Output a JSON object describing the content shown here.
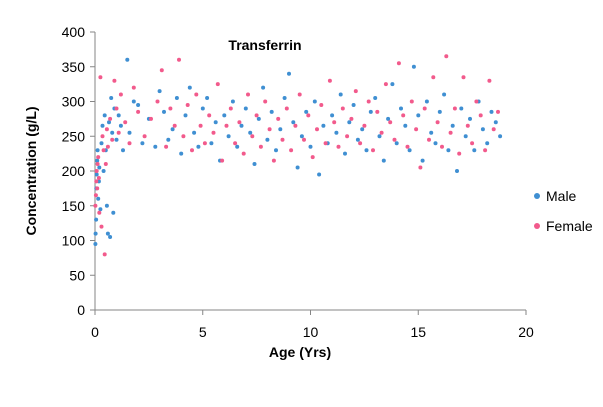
{
  "chart_data": {
    "type": "scatter",
    "title": "Transferrin",
    "xlabel": "Age (Yrs)",
    "ylabel": "Concentration (g/L)",
    "xlim": [
      0,
      20
    ],
    "ylim": [
      0,
      400
    ],
    "xticks": [
      "0",
      "5",
      "10",
      "15",
      "20"
    ],
    "yticks": [
      "0",
      "50",
      "100",
      "150",
      "200",
      "250",
      "300",
      "350",
      "400"
    ],
    "grid": false,
    "legend_position": "right",
    "series": [
      {
        "name": "Male",
        "color": "#3f8fd2",
        "points": [
          [
            0.02,
            95
          ],
          [
            0.03,
            110
          ],
          [
            0.05,
            130
          ],
          [
            0.06,
            175
          ],
          [
            0.08,
            195
          ],
          [
            0.1,
            215
          ],
          [
            0.12,
            230
          ],
          [
            0.15,
            160
          ],
          [
            0.18,
            185
          ],
          [
            0.2,
            205
          ],
          [
            0.25,
            145
          ],
          [
            0.3,
            240
          ],
          [
            0.35,
            265
          ],
          [
            0.4,
            200
          ],
          [
            0.45,
            280
          ],
          [
            0.5,
            230
          ],
          [
            0.55,
            150
          ],
          [
            0.6,
            110
          ],
          [
            0.65,
            270
          ],
          [
            0.7,
            105
          ],
          [
            0.75,
            305
          ],
          [
            0.8,
            255
          ],
          [
            0.85,
            140
          ],
          [
            0.9,
            290
          ],
          [
            1.0,
            245
          ],
          [
            1.1,
            280
          ],
          [
            1.2,
            265
          ],
          [
            1.3,
            230
          ],
          [
            1.5,
            360
          ],
          [
            1.6,
            255
          ],
          [
            1.8,
            300
          ],
          [
            2.0,
            295
          ],
          [
            2.2,
            240
          ],
          [
            2.5,
            275
          ],
          [
            2.8,
            235
          ],
          [
            3.0,
            315
          ],
          [
            3.2,
            285
          ],
          [
            3.4,
            245
          ],
          [
            3.6,
            260
          ],
          [
            3.8,
            305
          ],
          [
            4.0,
            225
          ],
          [
            4.2,
            280
          ],
          [
            4.4,
            320
          ],
          [
            4.6,
            255
          ],
          [
            4.8,
            235
          ],
          [
            5.0,
            290
          ],
          [
            5.2,
            305
          ],
          [
            5.4,
            240
          ],
          [
            5.6,
            270
          ],
          [
            5.8,
            215
          ],
          [
            6.0,
            280
          ],
          [
            6.2,
            250
          ],
          [
            6.4,
            300
          ],
          [
            6.6,
            235
          ],
          [
            6.8,
            265
          ],
          [
            7.0,
            290
          ],
          [
            7.2,
            255
          ],
          [
            7.4,
            210
          ],
          [
            7.6,
            275
          ],
          [
            7.8,
            320
          ],
          [
            8.0,
            245
          ],
          [
            8.2,
            285
          ],
          [
            8.4,
            230
          ],
          [
            8.6,
            260
          ],
          [
            8.8,
            305
          ],
          [
            9.0,
            340
          ],
          [
            9.2,
            270
          ],
          [
            9.4,
            205
          ],
          [
            9.6,
            250
          ],
          [
            9.8,
            285
          ],
          [
            10.0,
            235
          ],
          [
            10.2,
            300
          ],
          [
            10.4,
            195
          ],
          [
            10.6,
            265
          ],
          [
            10.8,
            240
          ],
          [
            11.0,
            280
          ],
          [
            11.2,
            255
          ],
          [
            11.4,
            310
          ],
          [
            11.6,
            225
          ],
          [
            11.8,
            270
          ],
          [
            12.0,
            295
          ],
          [
            12.2,
            245
          ],
          [
            12.4,
            260
          ],
          [
            12.6,
            230
          ],
          [
            12.8,
            285
          ],
          [
            13.0,
            305
          ],
          [
            13.2,
            250
          ],
          [
            13.4,
            215
          ],
          [
            13.6,
            275
          ],
          [
            13.8,
            325
          ],
          [
            14.0,
            240
          ],
          [
            14.2,
            290
          ],
          [
            14.4,
            265
          ],
          [
            14.6,
            230
          ],
          [
            14.8,
            350
          ],
          [
            15.0,
            280
          ],
          [
            15.2,
            215
          ],
          [
            15.4,
            300
          ],
          [
            15.6,
            255
          ],
          [
            15.8,
            240
          ],
          [
            16.0,
            285
          ],
          [
            16.2,
            310
          ],
          [
            16.4,
            230
          ],
          [
            16.6,
            265
          ],
          [
            16.8,
            200
          ],
          [
            17.0,
            290
          ],
          [
            17.2,
            250
          ],
          [
            17.4,
            275
          ],
          [
            17.6,
            230
          ],
          [
            17.8,
            300
          ],
          [
            18.0,
            260
          ],
          [
            18.2,
            240
          ],
          [
            18.4,
            285
          ],
          [
            18.6,
            270
          ],
          [
            18.8,
            250
          ]
        ]
      },
      {
        "name": "Female",
        "color": "#f25a8c",
        "points": [
          [
            0.02,
            150
          ],
          [
            0.04,
            165
          ],
          [
            0.06,
            185
          ],
          [
            0.08,
            200
          ],
          [
            0.1,
            175
          ],
          [
            0.12,
            210
          ],
          [
            0.15,
            220
          ],
          [
            0.18,
            190
          ],
          [
            0.2,
            140
          ],
          [
            0.25,
            335
          ],
          [
            0.3,
            120
          ],
          [
            0.35,
            250
          ],
          [
            0.4,
            230
          ],
          [
            0.45,
            80
          ],
          [
            0.5,
            210
          ],
          [
            0.55,
            260
          ],
          [
            0.6,
            235
          ],
          [
            0.7,
            275
          ],
          [
            0.8,
            245
          ],
          [
            0.9,
            330
          ],
          [
            1.0,
            290
          ],
          [
            1.1,
            255
          ],
          [
            1.2,
            310
          ],
          [
            1.4,
            270
          ],
          [
            1.6,
            240
          ],
          [
            1.8,
            320
          ],
          [
            2.0,
            285
          ],
          [
            2.3,
            250
          ],
          [
            2.6,
            275
          ],
          [
            2.9,
            300
          ],
          [
            3.1,
            345
          ],
          [
            3.3,
            235
          ],
          [
            3.5,
            290
          ],
          [
            3.7,
            265
          ],
          [
            3.9,
            360
          ],
          [
            4.1,
            250
          ],
          [
            4.3,
            295
          ],
          [
            4.5,
            230
          ],
          [
            4.7,
            310
          ],
          [
            4.9,
            265
          ],
          [
            5.1,
            240
          ],
          [
            5.3,
            280
          ],
          [
            5.5,
            255
          ],
          [
            5.7,
            325
          ],
          [
            5.9,
            215
          ],
          [
            6.1,
            265
          ],
          [
            6.3,
            290
          ],
          [
            6.5,
            240
          ],
          [
            6.7,
            270
          ],
          [
            6.9,
            225
          ],
          [
            7.1,
            310
          ],
          [
            7.3,
            250
          ],
          [
            7.5,
            280
          ],
          [
            7.7,
            235
          ],
          [
            7.9,
            300
          ],
          [
            8.1,
            260
          ],
          [
            8.3,
            215
          ],
          [
            8.5,
            275
          ],
          [
            8.7,
            245
          ],
          [
            8.9,
            290
          ],
          [
            9.1,
            230
          ],
          [
            9.3,
            265
          ],
          [
            9.5,
            310
          ],
          [
            9.7,
            245
          ],
          [
            9.9,
            280
          ],
          [
            10.1,
            220
          ],
          [
            10.3,
            260
          ],
          [
            10.5,
            295
          ],
          [
            10.7,
            240
          ],
          [
            10.9,
            330
          ],
          [
            11.1,
            270
          ],
          [
            11.3,
            235
          ],
          [
            11.5,
            290
          ],
          [
            11.7,
            250
          ],
          [
            11.9,
            275
          ],
          [
            12.1,
            315
          ],
          [
            12.3,
            240
          ],
          [
            12.5,
            265
          ],
          [
            12.7,
            300
          ],
          [
            12.9,
            230
          ],
          [
            13.1,
            285
          ],
          [
            13.3,
            255
          ],
          [
            13.5,
            325
          ],
          [
            13.7,
            270
          ],
          [
            13.9,
            245
          ],
          [
            14.1,
            355
          ],
          [
            14.3,
            280
          ],
          [
            14.5,
            235
          ],
          [
            14.7,
            300
          ],
          [
            14.9,
            260
          ],
          [
            15.1,
            205
          ],
          [
            15.3,
            290
          ],
          [
            15.5,
            245
          ],
          [
            15.7,
            335
          ],
          [
            15.9,
            270
          ],
          [
            16.1,
            235
          ],
          [
            16.3,
            365
          ],
          [
            16.5,
            255
          ],
          [
            16.7,
            290
          ],
          [
            16.9,
            225
          ],
          [
            17.1,
            335
          ],
          [
            17.3,
            265
          ],
          [
            17.5,
            240
          ],
          [
            17.7,
            300
          ],
          [
            17.9,
            280
          ],
          [
            18.1,
            230
          ],
          [
            18.3,
            330
          ],
          [
            18.5,
            260
          ],
          [
            18.7,
            285
          ]
        ]
      }
    ]
  }
}
